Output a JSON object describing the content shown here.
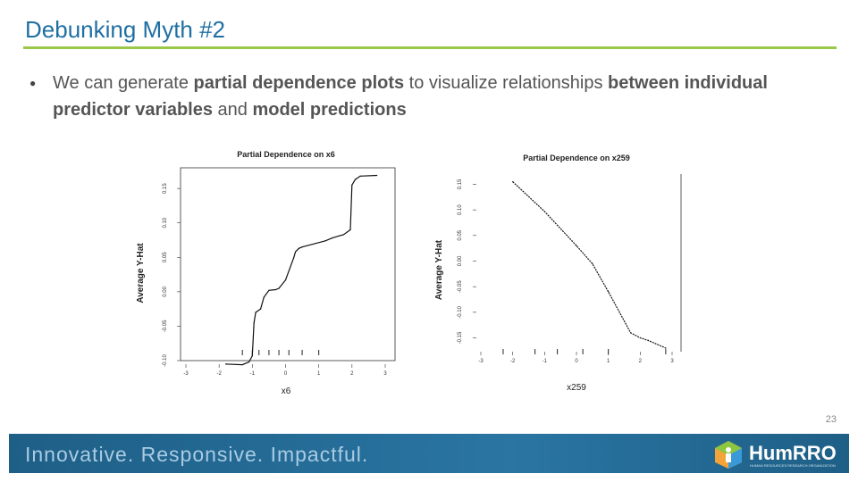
{
  "slide": {
    "title": "Debunking Myth #2",
    "bullet_parts": [
      {
        "text": "We can generate ",
        "bold": false
      },
      {
        "text": "partial dependence plots",
        "bold": true
      },
      {
        "text": " to visualize relationships ",
        "bold": false
      },
      {
        "text": "between individual predictor variables",
        "bold": true
      },
      {
        "text": " and ",
        "bold": false
      },
      {
        "text": "model predictions",
        "bold": true
      }
    ],
    "page_number": "23"
  },
  "footer": {
    "tagline": "Innovative.  Responsive.  Impactful.",
    "logo_text": "HumRRO",
    "logo_sub": "HUMAN RESOURCES RESEARCH ORGANIZATION"
  },
  "colors": {
    "title": "#1f6fa3",
    "rule": "#9cc84a",
    "footer": "#2a75a3"
  },
  "chart_data": [
    {
      "type": "line",
      "title": "Partial Dependence on x6",
      "xlabel": "x6",
      "ylabel": "Average Y-Hat",
      "xticks": [
        -3,
        -2,
        -1,
        0,
        1,
        2,
        3
      ],
      "yticks": [
        -0.1,
        -0.05,
        0.0,
        0.05,
        0.1,
        0.15
      ],
      "ytick_labels": [
        "-0.10",
        "-0.05",
        "0.00",
        "0.05",
        "0.10",
        "0.15"
      ],
      "xlim": [
        -3,
        3
      ],
      "ylim": [
        -0.1,
        0.18
      ],
      "series": [
        {
          "x": [
            -1.8,
            -1.3,
            -1.1,
            -1.0,
            -0.95,
            -0.9,
            -0.75,
            -0.65,
            -0.5,
            -0.3,
            -0.2,
            0.0,
            0.25,
            0.3,
            0.4,
            0.5,
            1.2,
            1.4,
            1.75,
            1.95,
            2.0,
            2.1,
            2.25,
            2.75
          ],
          "y": [
            -0.105,
            -0.106,
            -0.102,
            -0.093,
            -0.045,
            -0.03,
            -0.025,
            -0.008,
            0.002,
            0.003,
            0.005,
            0.017,
            0.05,
            0.058,
            0.063,
            0.065,
            0.074,
            0.078,
            0.083,
            0.09,
            0.155,
            0.163,
            0.168,
            0.169
          ]
        }
      ],
      "rug": [
        -1.3,
        -1.0,
        -0.8,
        -0.5,
        -0.2,
        0.1,
        0.5,
        1.0
      ]
    },
    {
      "type": "line",
      "title": "Partial Dependence on x259",
      "xlabel": "x259",
      "ylabel": "Average Y-Hat",
      "xticks": [
        -3,
        -2,
        -1,
        0,
        1,
        2,
        3
      ],
      "yticks": [
        -0.15,
        -0.1,
        -0.05,
        0.0,
        0.05,
        0.1,
        0.15
      ],
      "ytick_labels": [
        "-0.15",
        "-0.10",
        "-0.05",
        "0.00",
        "0.05",
        "0.10",
        "0.15"
      ],
      "xlim": [
        -3,
        3
      ],
      "ylim": [
        -0.17,
        0.17
      ],
      "series": [
        {
          "x": [
            -2.0,
            -1.0,
            0.0,
            0.5,
            1.0,
            1.7,
            2.0,
            2.25,
            2.8
          ],
          "y": [
            0.155,
            0.097,
            0.03,
            -0.005,
            -0.06,
            -0.14,
            -0.15,
            -0.155,
            -0.17
          ]
        }
      ],
      "rug": [
        -2.3,
        -1.3,
        -0.6,
        0.2,
        1.0,
        2.8
      ]
    }
  ]
}
